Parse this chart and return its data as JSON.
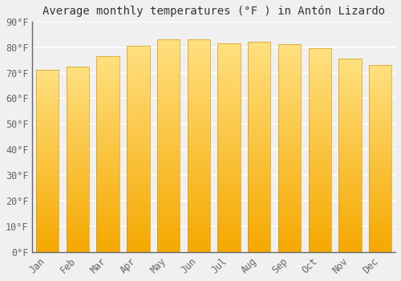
{
  "title": "Average monthly temperatures (°F ) in Antón Lizardo",
  "months": [
    "Jan",
    "Feb",
    "Mar",
    "Apr",
    "May",
    "Jun",
    "Jul",
    "Aug",
    "Sep",
    "Oct",
    "Nov",
    "Dec"
  ],
  "values": [
    71,
    72.5,
    76.5,
    80.5,
    83,
    83,
    81.5,
    82,
    81,
    79.5,
    75.5,
    73
  ],
  "bar_color_bottom": "#F5A800",
  "bar_color_top": "#FFE080",
  "ylim": [
    0,
    90
  ],
  "yticks": [
    0,
    10,
    20,
    30,
    40,
    50,
    60,
    70,
    80,
    90
  ],
  "ytick_labels": [
    "0°F",
    "10°F",
    "20°F",
    "30°F",
    "40°F",
    "50°F",
    "60°F",
    "70°F",
    "80°F",
    "90°F"
  ],
  "background_color": "#f0f0f0",
  "grid_color": "#ffffff",
  "title_fontsize": 10,
  "tick_fontsize": 8.5,
  "spine_color": "#666666"
}
